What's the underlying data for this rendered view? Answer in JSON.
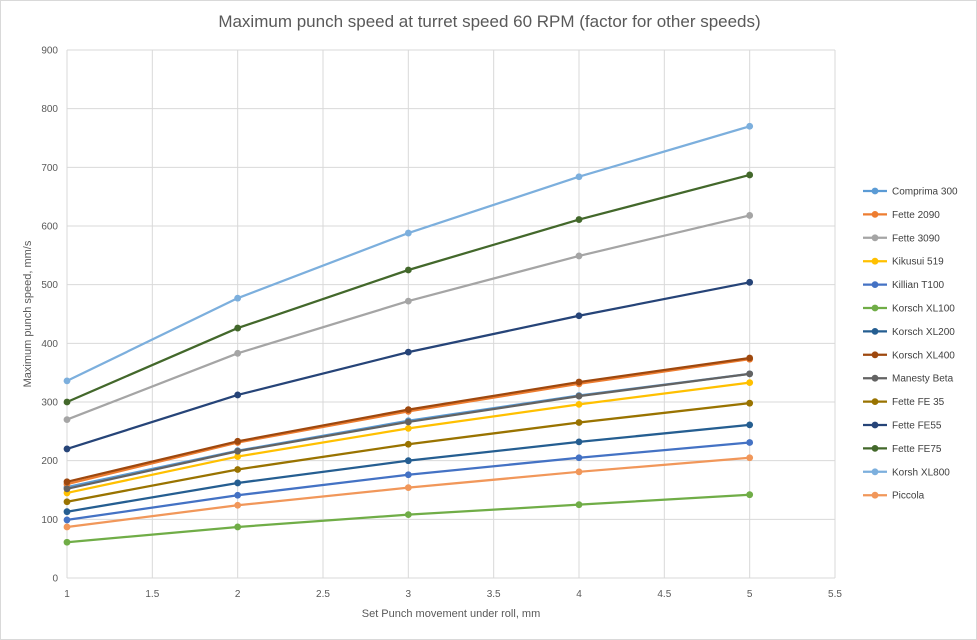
{
  "chart_data": {
    "type": "line",
    "title": "Maximum punch speed at turret speed 60 RPM (factor for other speeds)",
    "xlabel": "Set Punch movement  under roll, mm",
    "ylabel": "Maximum punch speed, mm/s",
    "xlim": [
      1,
      5.5
    ],
    "ylim": [
      0,
      900
    ],
    "xticks": [
      "1",
      "1.5",
      "2",
      "2.5",
      "3",
      "3.5",
      "4",
      "4.5",
      "5",
      "5.5"
    ],
    "yticks": [
      "0",
      "100",
      "200",
      "300",
      "400",
      "500",
      "600",
      "700",
      "800",
      "900"
    ],
    "x": [
      1,
      2,
      3,
      4,
      5
    ],
    "grid": true,
    "legend_position": "right",
    "series": [
      {
        "name": "Comprima 300",
        "color": "#5b9bd5",
        "values": [
          155,
          217,
          268,
          311,
          348
        ]
      },
      {
        "name": "Fette 2090",
        "color": "#ed7d31",
        "values": [
          160,
          231,
          284,
          331,
          373
        ]
      },
      {
        "name": "Fette 3090",
        "color": "#a5a5a5",
        "values": [
          270,
          383,
          472,
          549,
          618
        ]
      },
      {
        "name": "Kikusui 519",
        "color": "#ffc000",
        "values": [
          145,
          207,
          255,
          296,
          333
        ]
      },
      {
        "name": "Killian T100",
        "color": "#4472c4",
        "values": [
          99,
          141,
          176,
          205,
          231
        ]
      },
      {
        "name": "Korsch  XL100",
        "color": "#70ad47",
        "values": [
          61,
          87,
          108,
          125,
          142
        ]
      },
      {
        "name": "Korsch XL200",
        "color": "#255e91",
        "values": [
          113,
          162,
          200,
          232,
          261
        ]
      },
      {
        "name": "Korsch XL400",
        "color": "#9e480e",
        "values": [
          164,
          233,
          287,
          334,
          375
        ]
      },
      {
        "name": "Manesty Beta",
        "color": "#636363",
        "values": [
          152,
          216,
          266,
          310,
          348
        ]
      },
      {
        "name": "Fette FE 35",
        "color": "#997300",
        "values": [
          130,
          185,
          228,
          265,
          298
        ]
      },
      {
        "name": "Fette FE55",
        "color": "#264478",
        "values": [
          220,
          312,
          385,
          447,
          504
        ]
      },
      {
        "name": "Fette FE75",
        "color": "#43682b",
        "values": [
          300,
          426,
          525,
          611,
          687
        ]
      },
      {
        "name": "Korsh XL800",
        "color": "#7cafdd",
        "values": [
          336,
          477,
          588,
          684,
          770
        ]
      },
      {
        "name": "Piccola",
        "color": "#f1975a",
        "values": [
          87,
          124,
          154,
          181,
          205
        ]
      }
    ]
  }
}
